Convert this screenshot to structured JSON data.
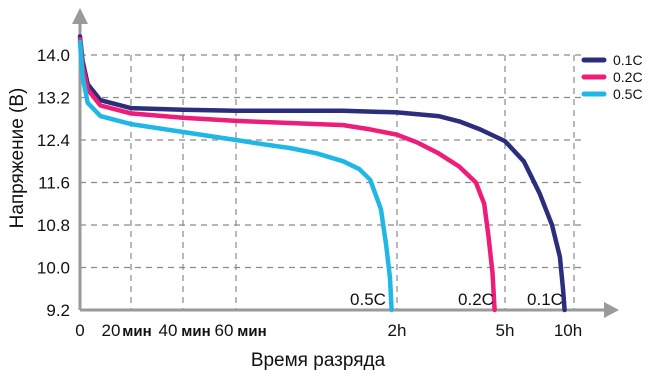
{
  "chart_data": {
    "type": "line",
    "title": "",
    "xlabel": "Время разряда",
    "ylabel": "Напряжение (В)",
    "ylim": [
      9.2,
      14.0
    ],
    "y_ticks": [
      "14.0",
      "13.2",
      "12.4",
      "11.6",
      "10.8",
      "10.0",
      "9.2"
    ],
    "x_ticks": [
      {
        "label": "0",
        "style": "normal"
      },
      {
        "label": "20",
        "style": "normal"
      },
      {
        "label": "мин",
        "style": "min"
      },
      {
        "label": "40",
        "style": "normal"
      },
      {
        "label": "мин",
        "style": "min"
      },
      {
        "label": "60",
        "style": "normal"
      },
      {
        "label": "мин",
        "style": "min"
      },
      {
        "label": "2h",
        "style": "normal"
      },
      {
        "label": "5h",
        "style": "normal"
      },
      {
        "label": "10h",
        "style": "normal"
      }
    ],
    "x_axis_note": "non-linear time axis; x values given as position index: 0, 20мин=1, 40мин=2, 60мин=3, 2h=6, 5h=8.6, 10h=10.8",
    "grid": true,
    "legend_position": "top-right",
    "series": [
      {
        "name": "0.1C",
        "color": "#2b2e7c",
        "end_label": "0.1C",
        "points": [
          [
            0,
            14.35
          ],
          [
            0.05,
            13.9
          ],
          [
            0.15,
            13.45
          ],
          [
            0.4,
            13.15
          ],
          [
            1,
            13.0
          ],
          [
            2,
            12.97
          ],
          [
            3,
            12.95
          ],
          [
            4,
            12.95
          ],
          [
            5,
            12.95
          ],
          [
            6,
            12.92
          ],
          [
            7,
            12.85
          ],
          [
            7.5,
            12.75
          ],
          [
            8,
            12.6
          ],
          [
            8.6,
            12.38
          ],
          [
            9.2,
            12.0
          ],
          [
            9.7,
            11.4
          ],
          [
            10.1,
            10.8
          ],
          [
            10.35,
            10.2
          ],
          [
            10.45,
            9.6
          ],
          [
            10.5,
            9.2
          ]
        ]
      },
      {
        "name": "0.2C",
        "color": "#ec1e79",
        "end_label": "0.2C",
        "points": [
          [
            0,
            14.3
          ],
          [
            0.05,
            13.8
          ],
          [
            0.15,
            13.35
          ],
          [
            0.4,
            13.05
          ],
          [
            1,
            12.9
          ],
          [
            2,
            12.82
          ],
          [
            3,
            12.76
          ],
          [
            4,
            12.72
          ],
          [
            5,
            12.68
          ],
          [
            5.5,
            12.6
          ],
          [
            6,
            12.5
          ],
          [
            6.5,
            12.35
          ],
          [
            7,
            12.15
          ],
          [
            7.5,
            11.9
          ],
          [
            7.9,
            11.6
          ],
          [
            8.1,
            11.2
          ],
          [
            8.2,
            10.6
          ],
          [
            8.3,
            9.9
          ],
          [
            8.35,
            9.2
          ]
        ]
      },
      {
        "name": "0.5C",
        "color": "#1fb7e5",
        "end_label": "0.5C",
        "points": [
          [
            0,
            14.25
          ],
          [
            0.05,
            13.6
          ],
          [
            0.15,
            13.1
          ],
          [
            0.4,
            12.85
          ],
          [
            1,
            12.7
          ],
          [
            2,
            12.55
          ],
          [
            3,
            12.4
          ],
          [
            3.5,
            12.32
          ],
          [
            4,
            12.25
          ],
          [
            4.5,
            12.15
          ],
          [
            5,
            12.0
          ],
          [
            5.3,
            11.85
          ],
          [
            5.5,
            11.65
          ],
          [
            5.7,
            11.1
          ],
          [
            5.8,
            10.4
          ],
          [
            5.87,
            9.8
          ],
          [
            5.9,
            9.2
          ]
        ]
      }
    ]
  }
}
